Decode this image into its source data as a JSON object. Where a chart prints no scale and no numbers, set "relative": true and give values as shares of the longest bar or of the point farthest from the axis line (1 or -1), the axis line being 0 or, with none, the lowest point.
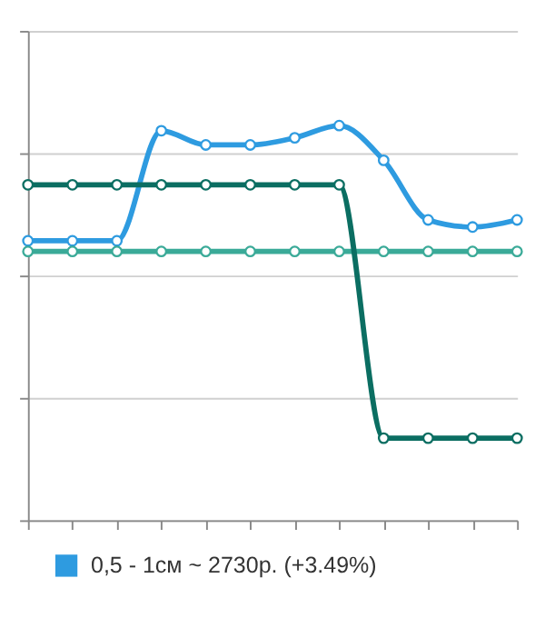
{
  "chart_data": {
    "type": "line",
    "relative": true,
    "categories": [
      null,
      null,
      null,
      null,
      null,
      null,
      null,
      null,
      null,
      null,
      null,
      null
    ],
    "series": [
      {
        "name": "0,5 - 1см ~ 2730р. (+3.49%)",
        "color": "#2e9be0",
        "values": [
          0.708,
          0.708,
          0.708,
          0.987,
          0.951,
          0.951,
          0.969,
          1,
          0.912,
          0.761,
          0.743,
          0.761
        ]
      },
      {
        "color": "#3aaa98",
        "values": [
          0.681,
          0.681,
          0.681,
          0.681,
          0.681,
          0.681,
          0.681,
          0.681,
          0.681,
          0.681,
          0.681,
          0.681
        ]
      },
      {
        "color": "#0b6e62",
        "values": [
          0.85,
          0.85,
          0.85,
          0.85,
          0.85,
          0.85,
          0.85,
          0.85,
          0.208,
          0.208,
          0.208,
          0.208
        ]
      }
    ],
    "grid": "y",
    "legend": "bottom",
    "marker": "circle",
    "line_style": "solid"
  }
}
